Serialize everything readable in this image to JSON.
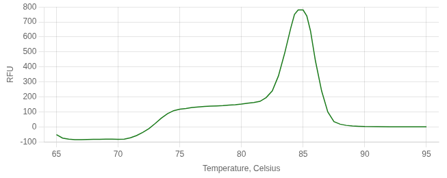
{
  "chart_data": {
    "type": "line",
    "xlabel": "Temperature, Celsius",
    "ylabel": "RFU",
    "x": [
      65.0,
      65.5,
      66.0,
      66.5,
      67.0,
      67.5,
      68.0,
      68.5,
      69.0,
      69.5,
      70.0,
      70.5,
      71.0,
      71.5,
      72.0,
      72.5,
      73.0,
      73.5,
      74.0,
      74.5,
      75.0,
      75.5,
      76.0,
      76.5,
      77.0,
      77.5,
      78.0,
      78.5,
      79.0,
      79.5,
      80.0,
      80.5,
      81.0,
      81.5,
      82.0,
      82.5,
      83.0,
      83.5,
      84.0,
      84.3,
      84.6,
      85.0,
      85.3,
      85.6,
      86.0,
      86.5,
      87.0,
      87.5,
      88.0,
      88.5,
      89.0,
      89.5,
      90.0,
      91.0,
      92.0,
      93.0,
      94.0,
      95.0
    ],
    "values": [
      -52,
      -75,
      -82,
      -85,
      -85,
      -84,
      -83,
      -83,
      -82,
      -82,
      -83,
      -82,
      -73,
      -58,
      -37,
      -12,
      22,
      58,
      88,
      108,
      118,
      123,
      129,
      133,
      136,
      138,
      140,
      142,
      145,
      148,
      152,
      158,
      162,
      170,
      195,
      240,
      340,
      490,
      660,
      750,
      780,
      780,
      740,
      640,
      440,
      240,
      100,
      35,
      18,
      10,
      6,
      4,
      2,
      1,
      0,
      0,
      0,
      0
    ],
    "color": "#1a7a1a",
    "xlim": [
      64,
      96
    ],
    "ylim": [
      -100,
      800
    ],
    "xticks": [
      65,
      70,
      75,
      80,
      85,
      90,
      95
    ],
    "yticks": [
      -100,
      0,
      100,
      200,
      300,
      400,
      500,
      600,
      700,
      800
    ],
    "grid": true
  }
}
